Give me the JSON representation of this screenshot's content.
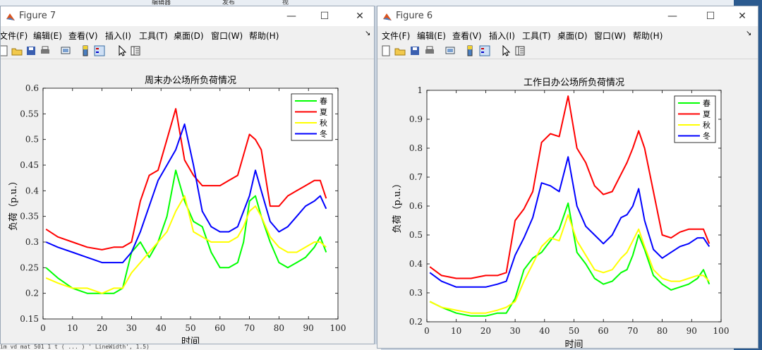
{
  "background": {
    "tabs": [
      "编辑器",
      "发布",
      "视"
    ],
    "code_line": "  im vd mat      501    1 t ( ... ) ' LineWidth', 1.5)"
  },
  "figures": [
    {
      "title": "Figure 7",
      "menu": [
        "文件(F)",
        "编辑(E)",
        "查看(V)",
        "插入(I)",
        "工具(T)",
        "桌面(D)",
        "窗口(W)",
        "帮助(H)"
      ],
      "chart_data": {
        "type": "line",
        "title": "周末办公场所负荷情况",
        "xlabel": "时间",
        "ylabel": "负荷（p.u.）",
        "xlim": [
          0,
          100
        ],
        "ylim": [
          0.15,
          0.6
        ],
        "xticks": [
          "0",
          "10",
          "20",
          "30",
          "40",
          "50",
          "60",
          "70",
          "80",
          "90",
          "100"
        ],
        "yticks": [
          "0.15",
          "0.2",
          "0.25",
          "0.3",
          "0.35",
          "0.4",
          "0.45",
          "0.5",
          "0.55",
          "0.6"
        ],
        "legend_position": "top-right",
        "x": [
          1,
          5,
          10,
          15,
          20,
          24,
          27,
          30,
          33,
          36,
          39,
          42,
          45,
          48,
          51,
          54,
          57,
          60,
          63,
          66,
          68,
          70,
          72,
          74,
          77,
          80,
          83,
          86,
          89,
          92,
          94,
          96
        ],
        "series": [
          {
            "name": "春",
            "color": "#00ff00",
            "values": [
              0.25,
              0.23,
              0.21,
              0.2,
              0.2,
              0.2,
              0.21,
              0.28,
              0.3,
              0.27,
              0.3,
              0.35,
              0.44,
              0.38,
              0.34,
              0.33,
              0.28,
              0.25,
              0.25,
              0.26,
              0.3,
              0.38,
              0.39,
              0.35,
              0.3,
              0.26,
              0.25,
              0.26,
              0.27,
              0.29,
              0.31,
              0.28
            ]
          },
          {
            "name": "夏",
            "color": "#ff0000",
            "values": [
              0.325,
              0.31,
              0.3,
              0.29,
              0.285,
              0.29,
              0.29,
              0.3,
              0.38,
              0.43,
              0.44,
              0.5,
              0.56,
              0.46,
              0.43,
              0.41,
              0.41,
              0.41,
              0.42,
              0.43,
              0.47,
              0.51,
              0.5,
              0.48,
              0.37,
              0.37,
              0.39,
              0.4,
              0.41,
              0.42,
              0.42,
              0.385
            ]
          },
          {
            "name": "秋",
            "color": "#ffff00",
            "values": [
              0.23,
              0.22,
              0.21,
              0.21,
              0.2,
              0.21,
              0.21,
              0.24,
              0.26,
              0.28,
              0.3,
              0.32,
              0.36,
              0.39,
              0.32,
              0.31,
              0.3,
              0.3,
              0.3,
              0.31,
              0.33,
              0.36,
              0.37,
              0.35,
              0.31,
              0.29,
              0.28,
              0.28,
              0.29,
              0.3,
              0.3,
              0.29
            ]
          },
          {
            "name": "冬",
            "color": "#0000ff",
            "values": [
              0.3,
              0.29,
              0.28,
              0.27,
              0.26,
              0.26,
              0.26,
              0.28,
              0.32,
              0.37,
              0.42,
              0.45,
              0.48,
              0.53,
              0.45,
              0.36,
              0.33,
              0.32,
              0.32,
              0.33,
              0.36,
              0.39,
              0.44,
              0.4,
              0.34,
              0.32,
              0.33,
              0.35,
              0.37,
              0.38,
              0.39,
              0.365
            ]
          }
        ]
      }
    },
    {
      "title": "Figure 6",
      "menu": [
        "文件(F)",
        "编辑(E)",
        "查看(V)",
        "插入(I)",
        "工具(T)",
        "桌面(D)",
        "窗口(W)",
        "帮助(H)"
      ],
      "chart_data": {
        "type": "line",
        "title": "工作日办公场所负荷情况",
        "xlabel": "时间",
        "ylabel": "负荷（p.u.）",
        "xlim": [
          0,
          100
        ],
        "ylim": [
          0.2,
          1
        ],
        "xticks": [
          "0",
          "10",
          "20",
          "30",
          "40",
          "50",
          "60",
          "70",
          "80",
          "90",
          "100"
        ],
        "yticks": [
          "0.2",
          "0.3",
          "0.4",
          "0.5",
          "0.6",
          "0.7",
          "0.8",
          "0.9",
          "1"
        ],
        "legend_position": "top-right",
        "x": [
          1,
          5,
          10,
          15,
          20,
          24,
          27,
          30,
          33,
          36,
          39,
          42,
          45,
          48,
          51,
          54,
          57,
          60,
          63,
          66,
          68,
          70,
          72,
          74,
          77,
          80,
          83,
          86,
          89,
          92,
          94,
          96
        ],
        "series": [
          {
            "name": "春",
            "color": "#00ff00",
            "values": [
              0.27,
              0.25,
              0.23,
              0.22,
              0.22,
              0.23,
              0.23,
              0.28,
              0.38,
              0.42,
              0.44,
              0.48,
              0.52,
              0.61,
              0.44,
              0.4,
              0.35,
              0.33,
              0.34,
              0.37,
              0.38,
              0.43,
              0.5,
              0.45,
              0.36,
              0.33,
              0.31,
              0.32,
              0.33,
              0.35,
              0.38,
              0.33
            ]
          },
          {
            "name": "夏",
            "color": "#ff0000",
            "values": [
              0.39,
              0.36,
              0.35,
              0.35,
              0.36,
              0.36,
              0.37,
              0.55,
              0.59,
              0.65,
              0.82,
              0.85,
              0.84,
              0.98,
              0.8,
              0.75,
              0.67,
              0.64,
              0.65,
              0.71,
              0.75,
              0.8,
              0.86,
              0.8,
              0.65,
              0.5,
              0.49,
              0.51,
              0.52,
              0.52,
              0.52,
              0.47
            ]
          },
          {
            "name": "秋",
            "color": "#ffff00",
            "values": [
              0.27,
              0.25,
              0.24,
              0.23,
              0.23,
              0.24,
              0.25,
              0.27,
              0.34,
              0.4,
              0.46,
              0.49,
              0.48,
              0.57,
              0.48,
              0.43,
              0.38,
              0.37,
              0.38,
              0.42,
              0.44,
              0.48,
              0.52,
              0.46,
              0.38,
              0.35,
              0.34,
              0.34,
              0.35,
              0.36,
              0.36,
              0.34
            ]
          },
          {
            "name": "冬",
            "color": "#0000ff",
            "values": [
              0.37,
              0.34,
              0.32,
              0.32,
              0.32,
              0.33,
              0.34,
              0.43,
              0.49,
              0.56,
              0.68,
              0.67,
              0.65,
              0.77,
              0.6,
              0.53,
              0.5,
              0.47,
              0.5,
              0.56,
              0.57,
              0.6,
              0.66,
              0.55,
              0.45,
              0.42,
              0.44,
              0.46,
              0.47,
              0.49,
              0.49,
              0.46
            ]
          }
        ]
      }
    }
  ]
}
